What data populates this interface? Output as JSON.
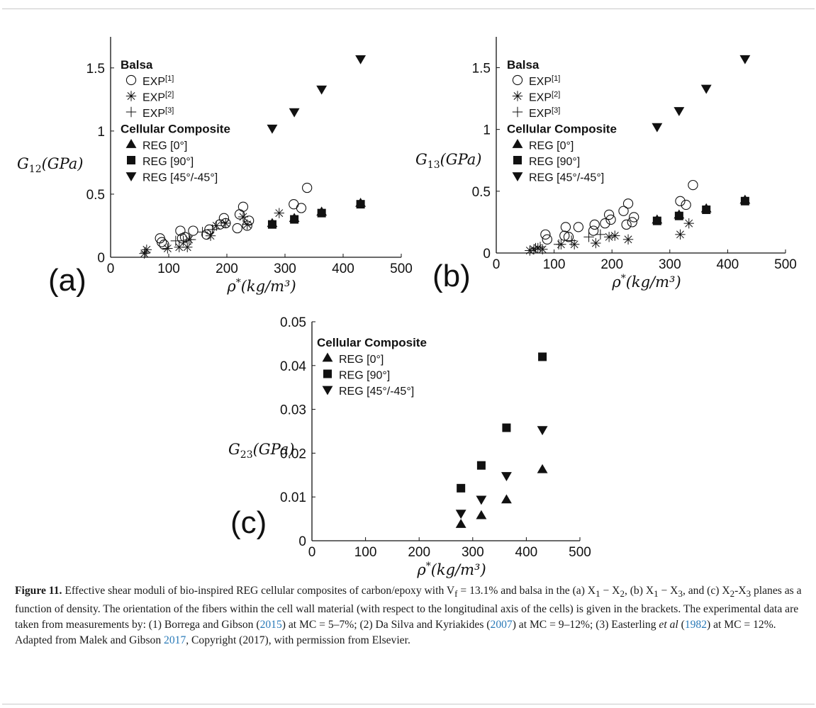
{
  "chart_data": [
    {
      "panel_label": "(a)",
      "type": "scatter",
      "ylabel": "G_{12}(GPa)",
      "xlabel": "ρ*(kg/m³)",
      "xlim": [
        0,
        500
      ],
      "ylim": [
        0,
        1.6
      ],
      "xticks": [
        "0",
        "100",
        "200",
        "300",
        "400",
        "500"
      ],
      "yticks": [
        {
          "v": 0,
          "t": "0"
        },
        {
          "v": 0.5,
          "t": "0.5"
        },
        {
          "v": 1,
          "t": "1"
        },
        {
          "v": 1.5,
          "t": "1.5"
        }
      ],
      "legend": {
        "groups": [
          {
            "title": "Balsa",
            "entries": [
              {
                "marker": "circle",
                "label": "EXP",
                "sup": "[1]"
              },
              {
                "marker": "asterisk",
                "label": "EXP",
                "sup": "[2]"
              },
              {
                "marker": "plus",
                "label": "EXP",
                "sup": "[3]"
              }
            ]
          },
          {
            "title": "Cellular Composite",
            "entries": [
              {
                "marker": "triangle-up",
                "label": "REG [0°]",
                "sup": ""
              },
              {
                "marker": "square",
                "label": "REG [90°]",
                "sup": ""
              },
              {
                "marker": "triangle-down",
                "label": "REG [45°/-45°]",
                "sup": ""
              }
            ]
          }
        ]
      },
      "series": [
        {
          "marker": "circle",
          "points": [
            [
              85,
              0.15
            ],
            [
              88,
              0.12
            ],
            [
              92,
              0.1
            ],
            [
              120,
              0.21
            ],
            [
              123,
              0.15
            ],
            [
              128,
              0.16
            ],
            [
              142,
              0.21
            ],
            [
              165,
              0.18
            ],
            [
              170,
              0.22
            ],
            [
              188,
              0.26
            ],
            [
              195,
              0.31
            ],
            [
              198,
              0.27
            ],
            [
              218,
              0.23
            ],
            [
              222,
              0.34
            ],
            [
              228,
              0.4
            ],
            [
              235,
              0.25
            ],
            [
              238,
              0.29
            ],
            [
              315,
              0.42
            ],
            [
              328,
              0.39
            ],
            [
              338,
              0.55
            ]
          ]
        },
        {
          "marker": "asterisk",
          "points": [
            [
              58,
              0.03
            ],
            [
              62,
              0.06
            ],
            [
              98,
              0.07
            ],
            [
              118,
              0.08
            ],
            [
              132,
              0.08
            ],
            [
              135,
              0.14
            ],
            [
              172,
              0.17
            ],
            [
              182,
              0.25
            ],
            [
              198,
              0.27
            ],
            [
              228,
              0.32
            ],
            [
              235,
              0.26
            ],
            [
              290,
              0.35
            ]
          ]
        },
        {
          "marker": "plus",
          "points": [
            [
              60,
              0.04
            ],
            [
              112,
              0.13
            ],
            [
              125,
              0.13
            ],
            [
              138,
              0.14
            ],
            [
              158,
              0.2
            ],
            [
              175,
              0.22
            ]
          ]
        },
        {
          "marker": "triangle-up",
          "points": [
            [
              278,
              0.27
            ],
            [
              316,
              0.31
            ],
            [
              363,
              0.36
            ],
            [
              430,
              0.43
            ]
          ]
        },
        {
          "marker": "square",
          "points": [
            [
              278,
              0.26
            ],
            [
              316,
              0.3
            ],
            [
              363,
              0.35
            ],
            [
              430,
              0.42
            ]
          ]
        },
        {
          "marker": "triangle-down",
          "points": [
            [
              278,
              1.02
            ],
            [
              316,
              1.15
            ],
            [
              363,
              1.33
            ],
            [
              430,
              1.57
            ]
          ]
        }
      ]
    },
    {
      "panel_label": "(b)",
      "type": "scatter",
      "ylabel": "G_{13}(GPa)",
      "xlabel": "ρ*(kg/m³)",
      "xlim": [
        0,
        500
      ],
      "ylim": [
        0,
        1.6
      ],
      "xticks": [
        "0",
        "100",
        "200",
        "300",
        "400",
        "500"
      ],
      "yticks": [
        {
          "v": 0,
          "t": "0"
        },
        {
          "v": 0.5,
          "t": "0.5"
        },
        {
          "v": 1,
          "t": "1"
        },
        {
          "v": 1.5,
          "t": "1.5"
        }
      ],
      "legend": {
        "groups": [
          {
            "title": "Balsa",
            "entries": [
              {
                "marker": "circle",
                "label": "EXP",
                "sup": "[1]"
              },
              {
                "marker": "asterisk",
                "label": "EXP",
                "sup": "[2]"
              },
              {
                "marker": "plus",
                "label": "EXP",
                "sup": "[3]"
              }
            ]
          },
          {
            "title": "Cellular Composite",
            "entries": [
              {
                "marker": "triangle-up",
                "label": "REG [0°]",
                "sup": ""
              },
              {
                "marker": "square",
                "label": "REG [90°]",
                "sup": ""
              },
              {
                "marker": "triangle-down",
                "label": "REG [45°/-45°]",
                "sup": ""
              }
            ]
          }
        ]
      },
      "series": [
        {
          "marker": "circle",
          "points": [
            [
              85,
              0.15
            ],
            [
              88,
              0.11
            ],
            [
              118,
              0.14
            ],
            [
              120,
              0.21
            ],
            [
              125,
              0.13
            ],
            [
              142,
              0.21
            ],
            [
              168,
              0.18
            ],
            [
              170,
              0.23
            ],
            [
              188,
              0.24
            ],
            [
              195,
              0.31
            ],
            [
              198,
              0.27
            ],
            [
              220,
              0.34
            ],
            [
              225,
              0.23
            ],
            [
              228,
              0.4
            ],
            [
              235,
              0.25
            ],
            [
              238,
              0.29
            ],
            [
              318,
              0.42
            ],
            [
              328,
              0.39
            ],
            [
              340,
              0.55
            ]
          ]
        },
        {
          "marker": "asterisk",
          "points": [
            [
              58,
              0.02
            ],
            [
              65,
              0.03
            ],
            [
              72,
              0.04
            ],
            [
              80,
              0.03
            ],
            [
              112,
              0.07
            ],
            [
              135,
              0.07
            ],
            [
              172,
              0.08
            ],
            [
              195,
              0.13
            ],
            [
              205,
              0.14
            ],
            [
              228,
              0.11
            ],
            [
              318,
              0.15
            ],
            [
              333,
              0.24
            ]
          ]
        },
        {
          "marker": "plus",
          "points": [
            [
              68,
              0.04
            ],
            [
              76,
              0.05
            ],
            [
              108,
              0.07
            ],
            [
              130,
              0.1
            ],
            [
              160,
              0.13
            ],
            [
              180,
              0.15
            ]
          ]
        },
        {
          "marker": "triangle-up",
          "points": [
            [
              278,
              0.27
            ],
            [
              316,
              0.31
            ],
            [
              363,
              0.36
            ],
            [
              430,
              0.43
            ]
          ]
        },
        {
          "marker": "square",
          "points": [
            [
              278,
              0.26
            ],
            [
              316,
              0.3
            ],
            [
              363,
              0.35
            ],
            [
              430,
              0.42
            ]
          ]
        },
        {
          "marker": "triangle-down",
          "points": [
            [
              278,
              1.02
            ],
            [
              316,
              1.15
            ],
            [
              363,
              1.33
            ],
            [
              430,
              1.57
            ]
          ]
        }
      ]
    },
    {
      "panel_label": "(c)",
      "type": "scatter",
      "ylabel": "G_{23}(GPa)",
      "xlabel": "ρ*(kg/m³)",
      "xlim": [
        0,
        500
      ],
      "ylim": [
        0,
        0.05
      ],
      "xticks": [
        "0",
        "100",
        "200",
        "300",
        "400",
        "500"
      ],
      "yticks": [
        {
          "v": 0,
          "t": "0"
        },
        {
          "v": 0.01,
          "t": "0.01"
        },
        {
          "v": 0.02,
          "t": "0.02"
        },
        {
          "v": 0.03,
          "t": "0.03"
        },
        {
          "v": 0.04,
          "t": "0.04"
        },
        {
          "v": 0.05,
          "t": "0.05"
        }
      ],
      "legend": {
        "groups": [
          {
            "title": "Cellular Composite",
            "entries": [
              {
                "marker": "triangle-up",
                "label": "REG [0°]",
                "sup": ""
              },
              {
                "marker": "square",
                "label": "REG [90°]",
                "sup": ""
              },
              {
                "marker": "triangle-down",
                "label": "REG [45°/-45°]",
                "sup": ""
              }
            ]
          }
        ]
      },
      "series": [
        {
          "marker": "triangle-up",
          "points": [
            [
              278,
              0.0038
            ],
            [
              316,
              0.0058
            ],
            [
              363,
              0.0094
            ],
            [
              430,
              0.0163
            ]
          ]
        },
        {
          "marker": "square",
          "points": [
            [
              278,
              0.012
            ],
            [
              316,
              0.0172
            ],
            [
              363,
              0.0258
            ],
            [
              430,
              0.042
            ]
          ]
        },
        {
          "marker": "triangle-down",
          "points": [
            [
              278,
              0.0062
            ],
            [
              316,
              0.0094
            ],
            [
              363,
              0.0148
            ],
            [
              430,
              0.0253
            ]
          ]
        }
      ]
    }
  ],
  "caption": {
    "label": "Figure 11.",
    "text_1": " Effective shear moduli of bio-inspired REG cellular composites of carbon/epoxy with V",
    "text_1_sub": "f",
    "text_2": " = 13.1% and balsa in the (a) X",
    "text_2a_sub": "1",
    "text_2b": " − X",
    "text_2b_sub": "2",
    "text_2c": ", (b) X",
    "text_2c_sub": "1",
    "text_2d": " − X",
    "text_2d_sub": "3",
    "text_2e": ", and (c) X",
    "text_2e_sub": "2",
    "text_2f": "-X",
    "text_2f_sub": "3",
    "text_3": " planes as a function of density. The orientation of the fibers within the cell wall material (with respect to the longitudinal axis of the cells) is given in the brackets. The experimental data are taken from measurements by: (1) Borrega and Gibson (",
    "ref_1": "2015",
    "text_4": ") at MC = 5–7%; (2) Da Silva and Kyriakides (",
    "ref_2": "2007",
    "text_5": ") at MC = 9–12%; (3) Easterling ",
    "etal": "et al",
    "text_6": " (",
    "ref_3": "1982",
    "text_7": ") at MC = 12%. Adapted from Malek and Gibson ",
    "ref_4": "2017",
    "text_8": ", Copyright (2017), with permission from Elsevier."
  }
}
